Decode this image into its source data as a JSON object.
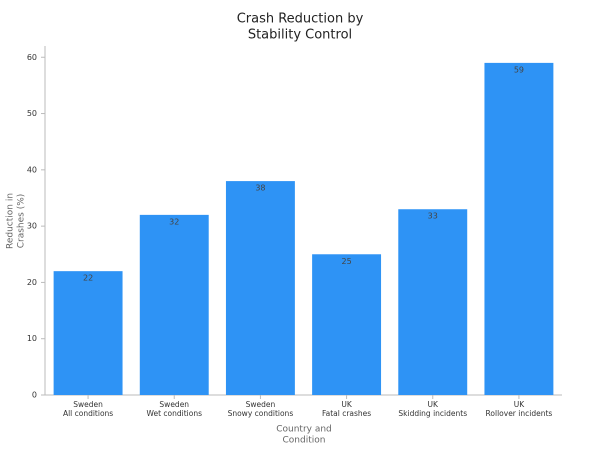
{
  "chart_data": {
    "type": "bar",
    "title": [
      "Crash Reduction by",
      "Stability Control"
    ],
    "x_label": [
      "Country and",
      "Condition"
    ],
    "y_label": [
      "Reduction in",
      "Crashes (%)"
    ],
    "categories": [
      [
        "Sweden",
        "All conditions"
      ],
      [
        "Sweden",
        "Wet conditions"
      ],
      [
        "Sweden",
        "Snowy conditions"
      ],
      [
        "UK",
        "Fatal crashes"
      ],
      [
        "UK",
        "Skidding incidents"
      ],
      [
        "UK",
        "Rollover incidents"
      ]
    ],
    "values": [
      22,
      32,
      38,
      25,
      33,
      59
    ],
    "color": "#2e93f5",
    "ylim": [
      0,
      62
    ],
    "yticks": [
      0,
      10,
      20,
      30,
      40,
      50,
      60
    ],
    "grid": false
  }
}
